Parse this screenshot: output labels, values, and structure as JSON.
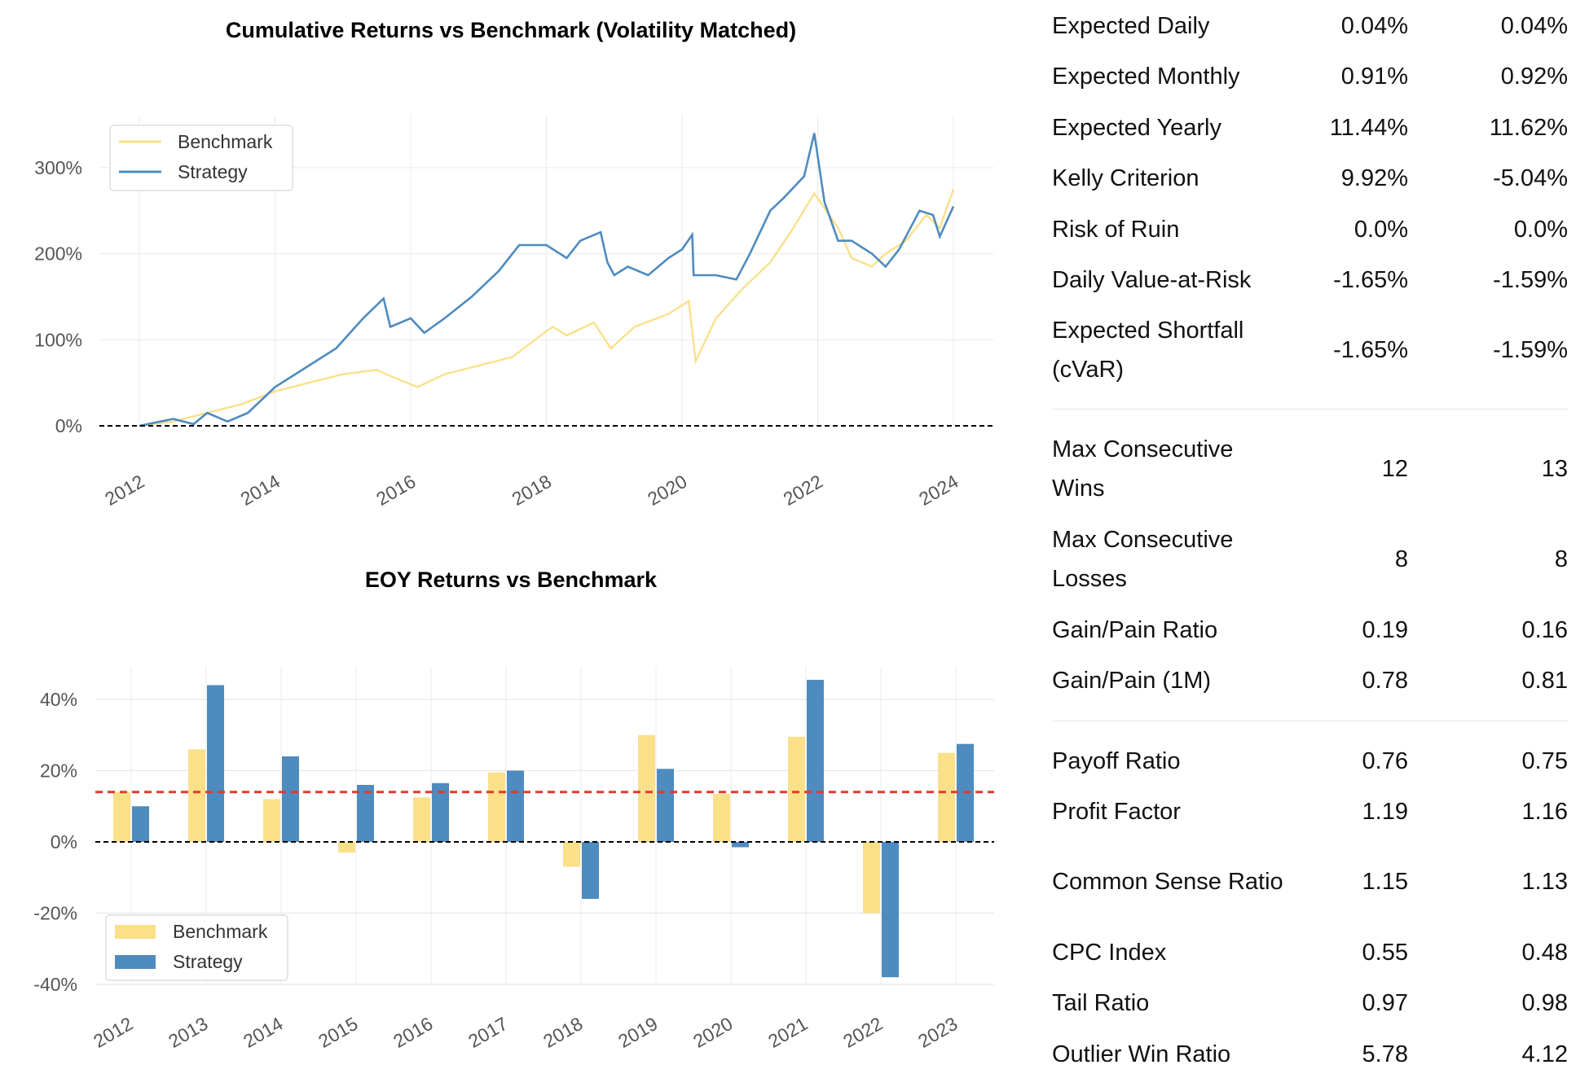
{
  "chart_data": [
    {
      "type": "line",
      "title": "Cumulative Returns vs Benchmark (Volatility Matched)",
      "x_ticks": [
        "2012",
        "2014",
        "2016",
        "2018",
        "2020",
        "2022",
        "2024"
      ],
      "y_ticks": [
        "0%",
        "100%",
        "200%",
        "300%"
      ],
      "ylim": [
        0,
        350
      ],
      "xlim": [
        2011.6,
        2024.6
      ],
      "grid": true,
      "legend": "top-left",
      "baseline": 0,
      "series": [
        {
          "name": "Benchmark",
          "color": "#fbe08a",
          "x": [
            2012,
            2012.5,
            2013,
            2013.5,
            2014,
            2014.5,
            2015,
            2015.5,
            2015.7,
            2016.1,
            2016.5,
            2017,
            2017.5,
            2018,
            2018.1,
            2018.3,
            2018.7,
            2018.95,
            2019.3,
            2019.8,
            2020.1,
            2020.2,
            2020.5,
            2020.9,
            2021.3,
            2021.6,
            2021.95,
            2022.3,
            2022.5,
            2022.8,
            2023,
            2023.3,
            2023.6,
            2023.8,
            2024
          ],
          "y": [
            0,
            5,
            15,
            25,
            40,
            50,
            60,
            65,
            58,
            45,
            60,
            70,
            80,
            110,
            115,
            105,
            120,
            90,
            115,
            130,
            145,
            75,
            125,
            160,
            190,
            225,
            270,
            230,
            195,
            185,
            200,
            215,
            245,
            230,
            275
          ]
        },
        {
          "name": "Strategy",
          "color": "#4e8bbf",
          "x": [
            2012,
            2012.5,
            2012.8,
            2013,
            2013.3,
            2013.6,
            2014,
            2014.5,
            2014.9,
            2015.3,
            2015.6,
            2015.7,
            2016,
            2016.2,
            2016.5,
            2016.9,
            2017.3,
            2017.6,
            2018,
            2018.3,
            2018.5,
            2018.8,
            2018.9,
            2019,
            2019.2,
            2019.5,
            2019.8,
            2020,
            2020.15,
            2020.17,
            2020.5,
            2020.8,
            2021,
            2021.3,
            2021.5,
            2021.8,
            2021.95,
            2022.1,
            2022.3,
            2022.5,
            2022.8,
            2023,
            2023.2,
            2023.5,
            2023.7,
            2023.8,
            2024
          ],
          "y": [
            0,
            8,
            2,
            15,
            5,
            15,
            45,
            70,
            90,
            125,
            148,
            115,
            125,
            108,
            125,
            150,
            180,
            210,
            210,
            195,
            215,
            225,
            190,
            175,
            185,
            175,
            195,
            205,
            222,
            175,
            175,
            170,
            200,
            250,
            265,
            290,
            340,
            260,
            215,
            215,
            200,
            185,
            205,
            250,
            245,
            220,
            255
          ]
        }
      ]
    },
    {
      "type": "bar",
      "title": "EOY Returns  vs Benchmark",
      "categories": [
        "2012",
        "2013",
        "2014",
        "2015",
        "2016",
        "2017",
        "2018",
        "2019",
        "2020",
        "2021",
        "2022",
        "2023"
      ],
      "y_ticks": [
        "-40%",
        "-20%",
        "0%",
        "20%",
        "40%"
      ],
      "ylim": [
        -45,
        50
      ],
      "grid": true,
      "legend": "bottom-left",
      "mean_line": {
        "value": 14,
        "color": "#e03b2e"
      },
      "series": [
        {
          "name": "Benchmark",
          "color": "#fbe08a",
          "values": [
            14,
            26,
            12,
            -3,
            12.5,
            19.5,
            -7,
            30,
            13.5,
            29.5,
            -20,
            25
          ]
        },
        {
          "name": "Strategy",
          "color": "#4e8bbf",
          "values": [
            10,
            44,
            24,
            16,
            16.5,
            20,
            -16,
            20.5,
            -1.5,
            45.5,
            -38,
            27.5
          ]
        }
      ]
    }
  ],
  "metrics": [
    {
      "label": "Expected Daily",
      "v1": "0.04%",
      "v2": "0.04%"
    },
    {
      "label": "Expected Monthly",
      "v1": "0.91%",
      "v2": "0.92%"
    },
    {
      "label": "Expected Yearly",
      "v1": "11.44%",
      "v2": "11.62%"
    },
    {
      "label": "Kelly Criterion",
      "v1": "9.92%",
      "v2": "-5.04%"
    },
    {
      "label": "Risk of Ruin",
      "v1": "0.0%",
      "v2": "0.0%"
    },
    {
      "label": "Daily Value-at-Risk",
      "v1": "-1.65%",
      "v2": "-1.59%"
    },
    {
      "label": "Expected Shortfall (cVaR)",
      "v1": "-1.65%",
      "v2": "-1.59%"
    },
    {
      "label": "Max Consecutive Wins",
      "v1": "12",
      "v2": "13"
    },
    {
      "label": "Max Consecutive Losses",
      "v1": "8",
      "v2": "8"
    },
    {
      "label": "Gain/Pain Ratio",
      "v1": "0.19",
      "v2": "0.16"
    },
    {
      "label": "Gain/Pain (1M)",
      "v1": "0.78",
      "v2": "0.81"
    },
    {
      "label": "Payoff Ratio",
      "v1": "0.76",
      "v2": "0.75"
    },
    {
      "label": "Profit Factor",
      "v1": "1.19",
      "v2": "1.16"
    },
    {
      "label": "Common Sense Ratio",
      "v1": "1.15",
      "v2": "1.13"
    },
    {
      "label": "CPC Index",
      "v1": "0.55",
      "v2": "0.48"
    },
    {
      "label": "Tail Ratio",
      "v1": "0.97",
      "v2": "0.98"
    },
    {
      "label": "Outlier Win Ratio",
      "v1": "5.78",
      "v2": "4.12"
    }
  ]
}
